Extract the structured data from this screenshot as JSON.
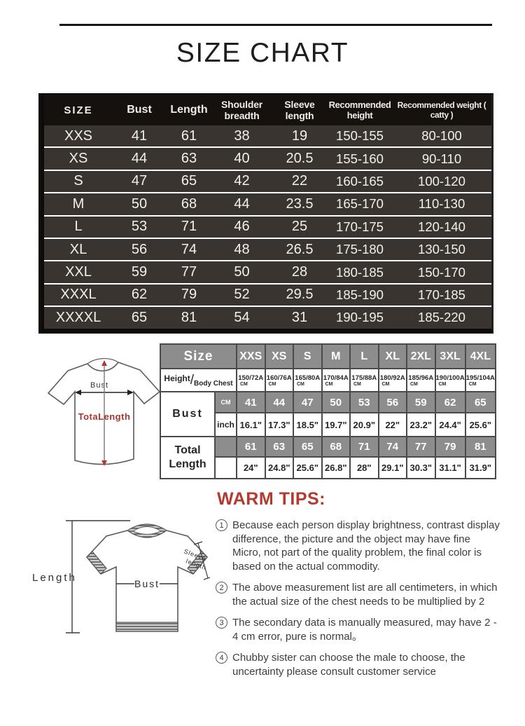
{
  "page": {
    "title": "SIZE CHART"
  },
  "main_table": {
    "headers": [
      "SIZE",
      "Bust",
      "Length",
      "Shoulder breadth",
      "Sleeve length",
      "Recommended height",
      "Recommended weight ( catty )"
    ],
    "rows": [
      [
        "XXS",
        "41",
        "61",
        "38",
        "19",
        "150-155",
        "80-100"
      ],
      [
        "XS",
        "44",
        "63",
        "40",
        "20.5",
        "155-160",
        "90-110"
      ],
      [
        "S",
        "47",
        "65",
        "42",
        "22",
        "160-165",
        "100-120"
      ],
      [
        "M",
        "50",
        "68",
        "44",
        "23.5",
        "165-170",
        "110-130"
      ],
      [
        "L",
        "53",
        "71",
        "46",
        "25",
        "170-175",
        "120-140"
      ],
      [
        "XL",
        "56",
        "74",
        "48",
        "26.5",
        "175-180",
        "130-150"
      ],
      [
        "XXL",
        "59",
        "77",
        "50",
        "28",
        "180-185",
        "150-170"
      ],
      [
        "XXXL",
        "62",
        "79",
        "52",
        "29.5",
        "185-190",
        "170-185"
      ],
      [
        "XXXXL",
        "65",
        "81",
        "54",
        "31",
        "190-195",
        "185-220"
      ]
    ]
  },
  "detail_table": {
    "size_label": "Size",
    "sizes": [
      "XXS",
      "XS",
      "S",
      "M",
      "L",
      "XL",
      "2XL",
      "3XL",
      "4XL"
    ],
    "height_label": "Height",
    "slash": "/",
    "body_chest_label": "Body Chest",
    "height_chest": [
      "150/72A",
      "160/76A",
      "165/80A",
      "170/84A",
      "175/88A",
      "180/92A",
      "185/96A",
      "190/100A",
      "195/104A"
    ],
    "height_chest_unit": "CM",
    "bust_label": "Bust",
    "cm_label": "CM",
    "inch_label": "inch",
    "bust_cm": [
      "41",
      "44",
      "47",
      "50",
      "53",
      "56",
      "59",
      "62",
      "65"
    ],
    "bust_inch": [
      "16.1\"",
      "17.3\"",
      "18.5\"",
      "19.7\"",
      "20.9\"",
      "22\"",
      "23.2\"",
      "24.4\"",
      "25.6\""
    ],
    "total_length_label": "Total Length",
    "length_cm": [
      "61",
      "63",
      "65",
      "68",
      "71",
      "74",
      "77",
      "79",
      "81"
    ],
    "length_inch": [
      "24\"",
      "24.8\"",
      "25.6\"",
      "26.8\"",
      "28\"",
      "29.1\"",
      "30.3\"",
      "31.1\"",
      "31.9\""
    ]
  },
  "diagram1": {
    "bust_label": "Bust",
    "total_length_label": "TotaLength"
  },
  "diagram2": {
    "length_label": "Length",
    "bust_label": "Bust",
    "sleeve_label_1": "Sleeve",
    "sleeve_label_2": "length"
  },
  "warm_tips": {
    "title": "WARM TIPS:",
    "items": [
      {
        "num": "1",
        "text": "Because each person display brightness, contrast display difference, the picture and the object may have fine Micro, not part of the quality problem, the final color is based on the actual commodity."
      },
      {
        "num": "2",
        "text": "The above measurement list are all centimeters, in which the actual size of the chest needs to be multiplied by 2"
      },
      {
        "num": "3",
        "text": "The secondary data is manually measured, may have 2 - 4 cm error, pure is normal。"
      },
      {
        "num": "4",
        "text": "Chubby sister can choose the male to choose, the uncertainty please consult customer service"
      }
    ]
  },
  "colors": {
    "tip_accent": "#b23a31",
    "diagram_red": "#a8352c",
    "dark_table_bg": "#39342f",
    "dark_table_header_bg": "#14110e",
    "detail_header_bg": "#8e8d8d"
  }
}
